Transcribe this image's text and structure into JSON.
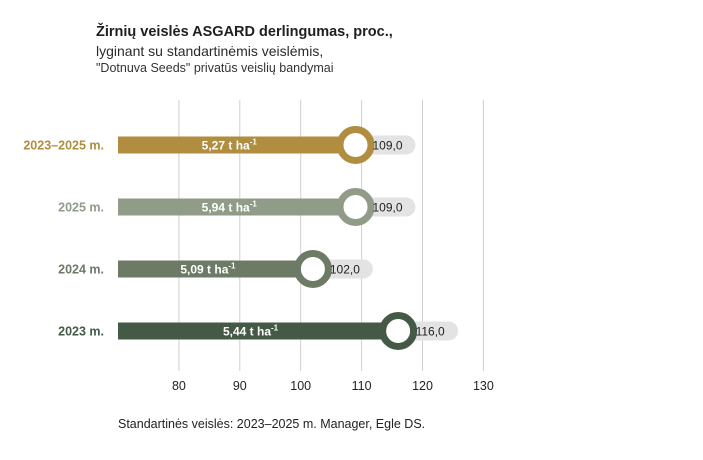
{
  "title": {
    "line1": "Žirnių veislės ASGARD derlingumas, proc.,",
    "line2": "lyginant su standartinėmis veislėmis,",
    "line3": "\"Dotnuva Seeds\" privatūs veislių bandymai"
  },
  "footnote": "Standartinės veislės: 2023–2025 m. Manager, Egle DS.",
  "colors": {
    "pill": "#e3e3e3",
    "grid": "#cfcfcf"
  },
  "chart_data": {
    "type": "bar",
    "orientation": "horizontal",
    "xlim": [
      70,
      130
    ],
    "xticks": [
      80,
      90,
      100,
      110,
      120,
      130
    ],
    "grid": true,
    "categories": [
      "2023–2025 m.",
      "2025 m.",
      "2024 m.",
      "2023 m."
    ],
    "values": [
      109.0,
      109.0,
      102.0,
      116.0
    ],
    "value_labels": [
      "109,0",
      "109,0",
      "102,0",
      "116,0"
    ],
    "bar_labels": [
      "5,27 t ha",
      "5,94 t ha",
      "5,09 t ha",
      "5,44 t ha"
    ],
    "unit_superscript": "-1",
    "colors": [
      "#b08d3f",
      "#909b88",
      "#6d7a66",
      "#445a46"
    ]
  }
}
